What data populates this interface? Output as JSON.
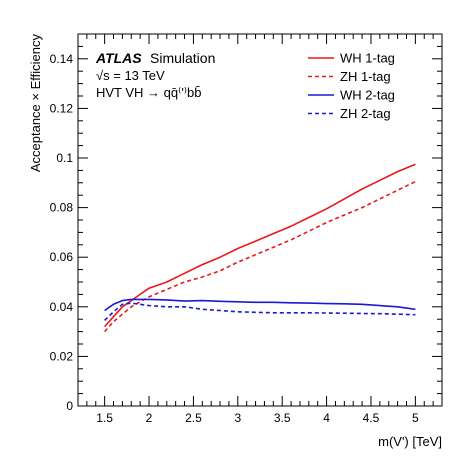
{
  "chart_data": {
    "type": "line",
    "xlabel": "m(V') [TeV]",
    "ylabel": "Acceptance × Efficiency",
    "xlim": [
      1.2,
      5.3
    ],
    "ylim": [
      0,
      0.15
    ],
    "xticks": [
      1.5,
      2,
      2.5,
      3,
      3.5,
      4,
      4.5,
      5
    ],
    "xtick_labels": [
      "1.5",
      "2",
      "2.5",
      "3",
      "3.5",
      "4",
      "4.5",
      "5"
    ],
    "yticks": [
      0,
      0.02,
      0.04,
      0.06,
      0.08,
      0.1,
      0.12,
      0.14
    ],
    "ytick_labels": [
      "0",
      "0.02",
      "0.04",
      "0.06",
      "0.08",
      "0.1",
      "0.12",
      "0.14"
    ],
    "grid": false,
    "legend_position": "top-right",
    "annotations": {
      "experiment": "ATLAS",
      "label": "Simulation",
      "energy": "√s = 13 TeV",
      "process": "HVT VH → qq̄⁽'⁾bb̄"
    },
    "series": [
      {
        "name": "WH 1-tag",
        "color": "#e8191a",
        "style": "solid",
        "x": [
          1.5,
          1.6,
          1.7,
          1.8,
          1.9,
          2.0,
          2.2,
          2.4,
          2.6,
          2.8,
          3.0,
          3.2,
          3.4,
          3.6,
          3.8,
          4.0,
          4.2,
          4.4,
          4.6,
          4.8,
          5.0
        ],
        "values": [
          0.032,
          0.036,
          0.04,
          0.0425,
          0.045,
          0.0475,
          0.05,
          0.0535,
          0.057,
          0.06,
          0.0635,
          0.0665,
          0.0695,
          0.0725,
          0.076,
          0.0795,
          0.0835,
          0.0875,
          0.091,
          0.0945,
          0.0975
        ]
      },
      {
        "name": "ZH 1-tag",
        "color": "#e8191a",
        "style": "dashed",
        "x": [
          1.5,
          1.6,
          1.7,
          1.8,
          1.9,
          2.0,
          2.2,
          2.4,
          2.6,
          2.8,
          3.0,
          3.2,
          3.4,
          3.6,
          3.8,
          4.0,
          4.2,
          4.4,
          4.6,
          4.8,
          5.0
        ],
        "values": [
          0.03,
          0.034,
          0.037,
          0.04,
          0.042,
          0.044,
          0.047,
          0.05,
          0.052,
          0.0545,
          0.058,
          0.061,
          0.064,
          0.067,
          0.0705,
          0.074,
          0.077,
          0.08,
          0.0835,
          0.087,
          0.0905
        ]
      },
      {
        "name": "WH 2-tag",
        "color": "#1a1ad6",
        "style": "solid",
        "x": [
          1.5,
          1.6,
          1.7,
          1.8,
          1.9,
          2.0,
          2.2,
          2.4,
          2.6,
          2.8,
          3.0,
          3.2,
          3.4,
          3.6,
          3.8,
          4.0,
          4.2,
          4.4,
          4.6,
          4.8,
          5.0
        ],
        "values": [
          0.0385,
          0.041,
          0.0425,
          0.043,
          0.043,
          0.043,
          0.0428,
          0.0423,
          0.0425,
          0.0422,
          0.042,
          0.0418,
          0.0418,
          0.0416,
          0.0415,
          0.0413,
          0.0412,
          0.041,
          0.0405,
          0.04,
          0.039
        ]
      },
      {
        "name": "ZH 2-tag",
        "color": "#1a1ad6",
        "style": "dashed",
        "x": [
          1.5,
          1.6,
          1.7,
          1.8,
          1.9,
          2.0,
          2.2,
          2.4,
          2.6,
          2.8,
          3.0,
          3.2,
          3.4,
          3.6,
          3.8,
          4.0,
          4.2,
          4.4,
          4.6,
          4.8,
          5.0
        ],
        "values": [
          0.0345,
          0.038,
          0.041,
          0.0415,
          0.041,
          0.0405,
          0.04,
          0.04,
          0.039,
          0.0385,
          0.038,
          0.0378,
          0.0376,
          0.0376,
          0.0376,
          0.0375,
          0.0374,
          0.0373,
          0.0372,
          0.037,
          0.0368
        ]
      }
    ]
  }
}
